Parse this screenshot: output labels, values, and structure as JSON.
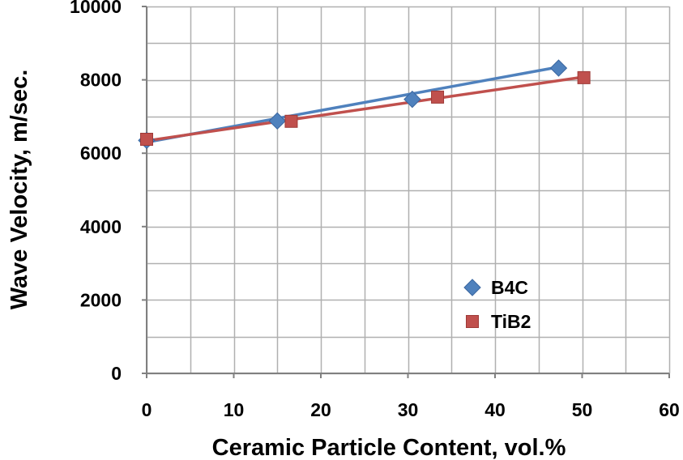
{
  "chart_data": {
    "type": "scatter",
    "xlabel": "Ceramic Particle Content, vol.%",
    "ylabel": "Wave Velocity, m/sec.",
    "xlim": [
      0,
      60
    ],
    "ylim": [
      0,
      10000
    ],
    "x_ticks": [
      "0",
      "10",
      "20",
      "30",
      "40",
      "50",
      "60"
    ],
    "y_ticks": [
      "0",
      "2000",
      "4000",
      "6000",
      "8000",
      "10000"
    ],
    "x_minor_step": 5,
    "y_minor_step": 1000,
    "grid": true,
    "legend_position": "lower-right",
    "series": [
      {
        "name": "B4C",
        "marker": "diamond",
        "color": "#4F81BD",
        "points": [
          [
            0,
            6350
          ],
          [
            15,
            6880
          ],
          [
            30.5,
            7470
          ],
          [
            47.3,
            8320
          ]
        ],
        "trendline": [
          [
            0,
            6300
          ],
          [
            47.3,
            8350
          ]
        ]
      },
      {
        "name": "TiB2",
        "marker": "square",
        "color": "#C0504D",
        "points": [
          [
            0,
            6380
          ],
          [
            16.6,
            6870
          ],
          [
            33.4,
            7530
          ],
          [
            50.2,
            8060
          ]
        ],
        "trendline": [
          [
            0,
            6340
          ],
          [
            50.2,
            8080
          ]
        ]
      }
    ]
  }
}
